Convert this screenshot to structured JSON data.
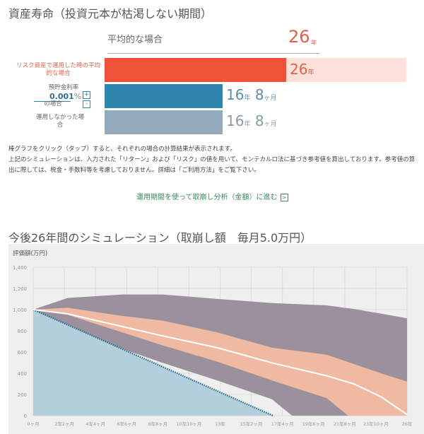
{
  "title": "資産寿命（投資元本が枯渇しない期間）",
  "average": {
    "label": "平均的な場合",
    "value": "26",
    "unit": "年"
  },
  "rows": [
    {
      "label": "リスク資産で運用した時の平均的な場合",
      "value": "26",
      "unit1": "年",
      "color": "#ee5238",
      "bg_color": "#fde0d9",
      "years": 26
    },
    {
      "label_top": "預貯金利率",
      "rate": "0.001",
      "rate_unit": "%",
      "label_bottom": "の場合",
      "plus": "+",
      "minus": "-",
      "value": "16",
      "unit1": "年",
      "value2": "8",
      "unit2": "ヶ月",
      "color": "#2e86ad",
      "years": 16.67
    },
    {
      "label": "運用しなかった場合",
      "value": "16",
      "unit1": "年",
      "value2": "8",
      "unit2": "ヶ月",
      "color": "#94aabb",
      "years": 16.67
    }
  ],
  "notes": [
    "棒グラフをクリック（タップ）すると、それぞれの場合の計算結果が表示されます。",
    "上記のシミュレーションは、入力された「リターン」および「リスク」の値を用いて、モンテカルロ法に基づき参考値を算出しております。参考値の算出に際しては、税金・手数料等を考慮しておりません。詳細は「ご利用方法」をご覧下さい。"
  ],
  "link": {
    "label": "運用期間を使って取崩し分析（金額）に進む",
    "icon": "arrow-right-box-icon"
  },
  "simulation_title": "今後26年間のシミュレーション（取崩し額　毎月5.0万円）",
  "chart_data": {
    "type": "area",
    "ylabel": "評価額(万円)",
    "ylim": [
      0,
      1400
    ],
    "yticks": [
      "0",
      "200",
      "400",
      "600",
      "800",
      "1,000",
      "1,200",
      "1,400"
    ],
    "xlim": [
      0,
      26
    ],
    "xticks": [
      "0ヶ月",
      "2年2ヶ月",
      "4年4ヶ月",
      "6年6ヶ月",
      "8年8ヶ月",
      "10年10ヶ月",
      "13年",
      "15年2ヶ月",
      "17年4ヶ月",
      "19年6ヶ月",
      "21年8ヶ月",
      "23年10ヶ月",
      "26年"
    ],
    "grid": true,
    "colors": {
      "outer": "#9b919d",
      "inner": "#f0b9a2",
      "median": "#ffffff",
      "deposit": "#b3cfdb",
      "deposit_line": "#2e6f93"
    },
    "outer_upper": [
      [
        0,
        1000
      ],
      [
        2.4,
        1110
      ],
      [
        6.2,
        1143
      ],
      [
        9,
        1143
      ],
      [
        12.8,
        1101
      ],
      [
        16.6,
        1062
      ],
      [
        20.4,
        1040
      ],
      [
        22.3,
        1006
      ],
      [
        24.2,
        962
      ],
      [
        26,
        918
      ]
    ],
    "inner_upper": [
      [
        0,
        1000
      ],
      [
        2.4,
        1017
      ],
      [
        6.2,
        940
      ],
      [
        9,
        896
      ],
      [
        12.8,
        785
      ],
      [
        16.6,
        641
      ],
      [
        20.4,
        575
      ],
      [
        22.3,
        487
      ],
      [
        24.2,
        398
      ],
      [
        26,
        321
      ]
    ],
    "median": [
      [
        0,
        1000
      ],
      [
        2.4,
        960
      ],
      [
        6.2,
        840
      ],
      [
        9,
        752
      ],
      [
        12.8,
        641
      ],
      [
        16.6,
        498
      ],
      [
        20.4,
        376
      ],
      [
        22.3,
        299
      ],
      [
        24.2,
        177
      ],
      [
        26,
        11
      ]
    ],
    "inner_lower": [
      [
        0,
        1000
      ],
      [
        2.4,
        951
      ],
      [
        6.2,
        785
      ],
      [
        9,
        663
      ],
      [
        12.8,
        509
      ],
      [
        16.6,
        332
      ],
      [
        20.4,
        166
      ],
      [
        21.9,
        0
      ],
      [
        26,
        0
      ]
    ],
    "outer_lower": [
      [
        0,
        1000
      ],
      [
        2.4,
        796
      ],
      [
        6.2,
        630
      ],
      [
        9,
        498
      ],
      [
        12.8,
        332
      ],
      [
        16.6,
        155
      ],
      [
        18,
        0
      ],
      [
        26,
        0
      ]
    ],
    "deposit": [
      [
        0,
        1000
      ],
      [
        16.67,
        0
      ],
      [
        26,
        0
      ]
    ]
  }
}
